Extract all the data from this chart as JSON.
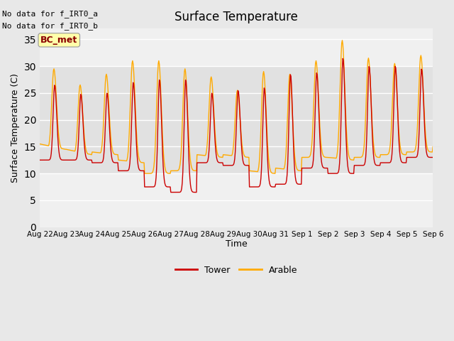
{
  "title": "Surface Temperature",
  "ylabel": "Surface Temperature (C)",
  "xlabel": "Time",
  "xlabels": [
    "Aug 22",
    "Aug 23",
    "Aug 24",
    "Aug 25",
    "Aug 26",
    "Aug 27",
    "Aug 28",
    "Aug 29",
    "Aug 30",
    "Aug 31",
    "Sep 1",
    "Sep 2",
    "Sep 3",
    "Sep 4",
    "Sep 5",
    "Sep 6"
  ],
  "ylim": [
    0,
    37
  ],
  "yticks": [
    0,
    5,
    10,
    15,
    20,
    25,
    30,
    35
  ],
  "tower_color": "#cc0000",
  "arable_color": "#ffaa00",
  "annotation_text1": "No data for f_IRT0_a",
  "annotation_text2": "No data for f_IRT0_b",
  "bc_met_label": "BC_met",
  "tower_label": "Tower",
  "arable_label": "Arable",
  "n_days": 15
}
